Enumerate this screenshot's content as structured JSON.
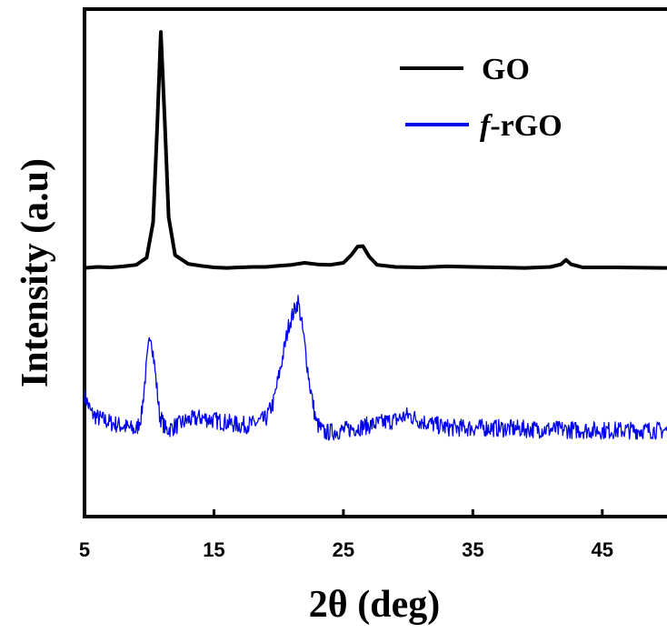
{
  "chart_data": {
    "type": "line",
    "title": "",
    "xlabel": "2θ (deg)",
    "ylabel": "Intensity (a.u)",
    "xlim": [
      5,
      50
    ],
    "ylim": [
      0,
      1
    ],
    "x_ticks": [
      "5",
      "15",
      "25",
      "35",
      "45"
    ],
    "y_ticks_shown": false,
    "grid": false,
    "legend_position": "top-right",
    "series": [
      {
        "name": "GO",
        "color": "#000000",
        "points": [
          [
            5,
            0.49
          ],
          [
            6,
            0.492
          ],
          [
            7,
            0.491
          ],
          [
            8,
            0.493
          ],
          [
            9,
            0.496
          ],
          [
            9.8,
            0.51
          ],
          [
            10.3,
            0.58
          ],
          [
            10.6,
            0.76
          ],
          [
            10.9,
            0.955
          ],
          [
            11.2,
            0.78
          ],
          [
            11.5,
            0.59
          ],
          [
            12,
            0.515
          ],
          [
            13,
            0.498
          ],
          [
            14,
            0.494
          ],
          [
            15,
            0.491
          ],
          [
            16,
            0.49
          ],
          [
            17,
            0.491
          ],
          [
            18,
            0.492
          ],
          [
            19,
            0.492
          ],
          [
            20,
            0.494
          ],
          [
            21,
            0.496
          ],
          [
            22,
            0.5
          ],
          [
            23,
            0.497
          ],
          [
            24,
            0.496
          ],
          [
            25,
            0.5
          ],
          [
            25.6,
            0.515
          ],
          [
            26.1,
            0.532
          ],
          [
            26.5,
            0.533
          ],
          [
            27,
            0.512
          ],
          [
            27.6,
            0.496
          ],
          [
            29,
            0.492
          ],
          [
            31,
            0.491
          ],
          [
            33,
            0.493
          ],
          [
            35,
            0.492
          ],
          [
            37,
            0.491
          ],
          [
            39,
            0.49
          ],
          [
            41,
            0.492
          ],
          [
            41.8,
            0.497
          ],
          [
            42.2,
            0.506
          ],
          [
            42.6,
            0.497
          ],
          [
            43.5,
            0.491
          ],
          [
            46,
            0.491
          ],
          [
            50,
            0.49
          ]
        ]
      },
      {
        "name": "f-rGO",
        "color": "#0000ee",
        "points": [
          [
            5,
            0.24
          ],
          [
            5.5,
            0.205
          ],
          [
            6,
            0.195
          ],
          [
            7,
            0.185
          ],
          [
            8,
            0.178
          ],
          [
            9,
            0.17
          ],
          [
            9.4,
            0.2
          ],
          [
            9.8,
            0.3
          ],
          [
            10.1,
            0.365
          ],
          [
            10.4,
            0.3
          ],
          [
            10.8,
            0.2
          ],
          [
            11.3,
            0.17
          ],
          [
            12,
            0.178
          ],
          [
            13,
            0.19
          ],
          [
            14,
            0.195
          ],
          [
            15,
            0.19
          ],
          [
            16,
            0.185
          ],
          [
            17,
            0.18
          ],
          [
            18,
            0.182
          ],
          [
            19,
            0.192
          ],
          [
            19.6,
            0.225
          ],
          [
            20.2,
            0.3
          ],
          [
            20.8,
            0.38
          ],
          [
            21.2,
            0.405
          ],
          [
            21.5,
            0.425
          ],
          [
            21.9,
            0.36
          ],
          [
            22.4,
            0.26
          ],
          [
            22.9,
            0.185
          ],
          [
            23.5,
            0.165
          ],
          [
            25,
            0.17
          ],
          [
            27,
            0.18
          ],
          [
            29,
            0.19
          ],
          [
            30,
            0.2
          ],
          [
            31,
            0.188
          ],
          [
            33,
            0.175
          ],
          [
            36,
            0.175
          ],
          [
            40,
            0.172
          ],
          [
            45,
            0.17
          ],
          [
            50,
            0.17
          ]
        ]
      }
    ]
  },
  "legend": {
    "items": [
      {
        "label": "GO",
        "italic_prefix": "",
        "color": "#000000"
      },
      {
        "label": "-rGO",
        "italic_prefix": "f",
        "color": "#0000ee"
      }
    ]
  }
}
